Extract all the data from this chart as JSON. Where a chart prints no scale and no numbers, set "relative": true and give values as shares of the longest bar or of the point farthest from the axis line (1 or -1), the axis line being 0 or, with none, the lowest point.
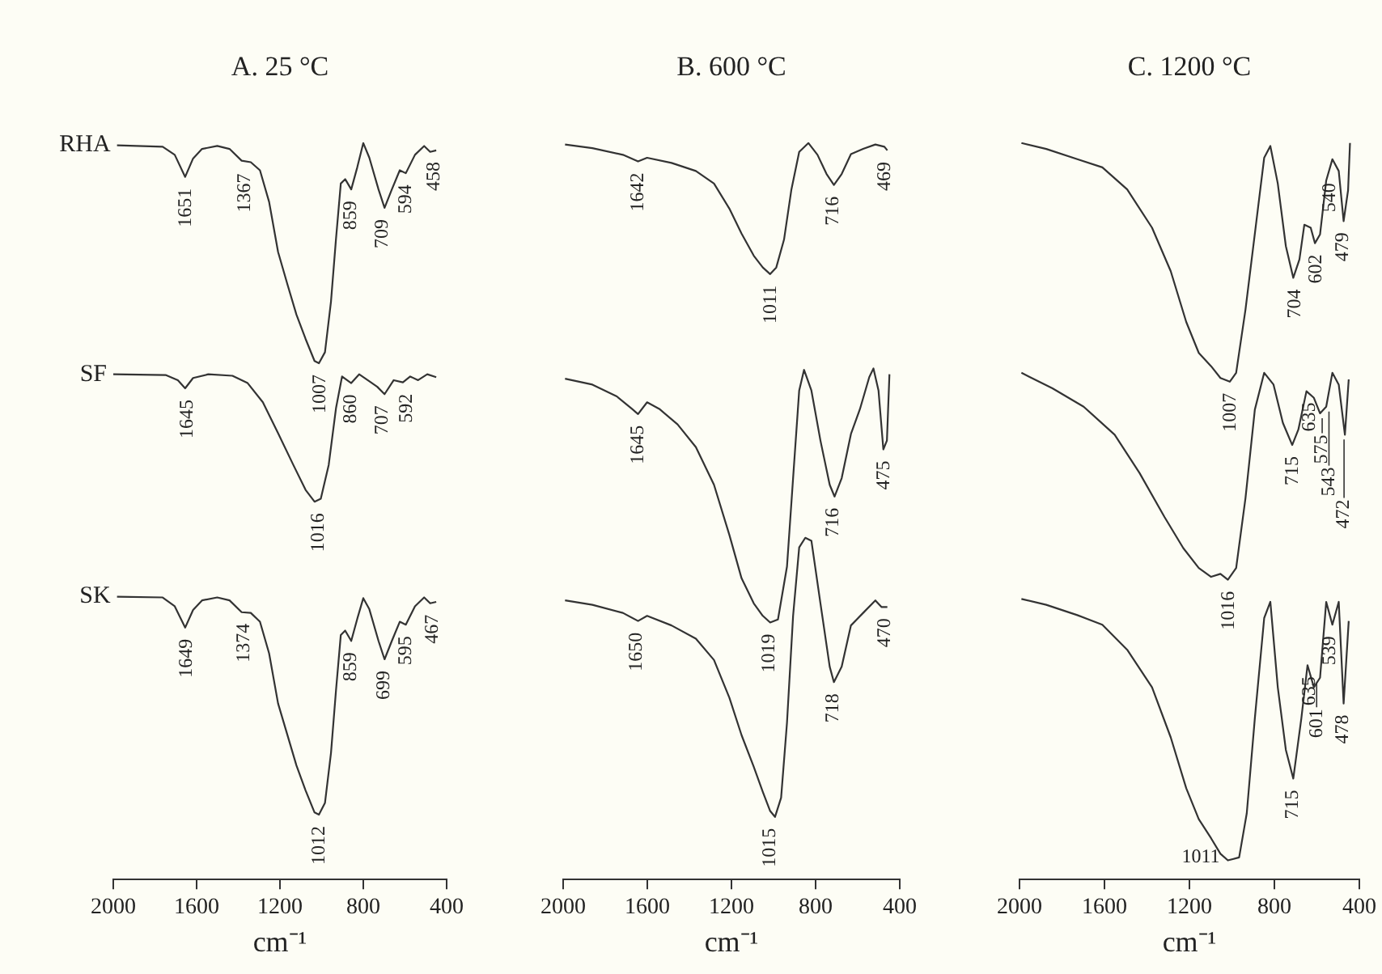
{
  "chart_data": [
    {
      "type": "line",
      "title": "A. 25 °C",
      "xlabel": "cm⁻¹",
      "relative": true,
      "marker": "none",
      "legend": false,
      "xlim": [
        2000,
        400
      ],
      "xticks": [
        2000,
        1600,
        1200,
        800,
        400
      ],
      "series": [
        {
          "name": "RHA",
          "color": "#333333",
          "x": [
            1982,
            1763,
            1705,
            1655,
            1617,
            1574,
            1501,
            1442,
            1384,
            1340,
            1296,
            1252,
            1209,
            1165,
            1121,
            1077,
            1034,
            1013,
            984,
            955,
            931,
            908,
            887,
            858,
            829,
            800,
            771,
            727,
            698,
            663,
            625,
            596,
            552,
            508,
            479,
            450
          ],
          "values": [
            0.997,
            0.995,
            0.984,
            0.954,
            0.979,
            0.992,
            0.996,
            0.992,
            0.976,
            0.974,
            0.963,
            0.92,
            0.852,
            0.809,
            0.767,
            0.734,
            0.704,
            0.701,
            0.716,
            0.785,
            0.87,
            0.945,
            0.951,
            0.937,
            0.967,
            1.0,
            0.98,
            0.937,
            0.912,
            0.937,
            0.963,
            0.959,
            0.984,
            0.996,
            0.988,
            0.99
          ]
        },
        {
          "name": "SF",
          "color": "#333333",
          "x": [
            2000,
            1749,
            1690,
            1655,
            1617,
            1544,
            1428,
            1355,
            1282,
            1209,
            1136,
            1077,
            1034,
            1004,
            966,
            931,
            902,
            858,
            820,
            779,
            733,
            698,
            654,
            610,
            575,
            537,
            493,
            450
          ],
          "values": [
            0.686,
            0.685,
            0.678,
            0.667,
            0.681,
            0.686,
            0.684,
            0.674,
            0.648,
            0.606,
            0.563,
            0.529,
            0.513,
            0.517,
            0.563,
            0.64,
            0.683,
            0.674,
            0.686,
            0.678,
            0.669,
            0.659,
            0.678,
            0.675,
            0.683,
            0.678,
            0.686,
            0.682
          ]
        },
        {
          "name": "SK",
          "color": "#333333",
          "x": [
            1982,
            1763,
            1705,
            1655,
            1617,
            1574,
            1501,
            1442,
            1384,
            1340,
            1296,
            1252,
            1209,
            1165,
            1121,
            1077,
            1034,
            1013,
            984,
            955,
            931,
            908,
            887,
            858,
            829,
            800,
            771,
            727,
            698,
            663,
            625,
            596,
            552,
            508,
            479,
            450
          ],
          "values": [
            0.384,
            0.383,
            0.371,
            0.342,
            0.366,
            0.379,
            0.383,
            0.379,
            0.363,
            0.362,
            0.35,
            0.307,
            0.239,
            0.197,
            0.155,
            0.121,
            0.091,
            0.088,
            0.104,
            0.172,
            0.257,
            0.332,
            0.338,
            0.324,
            0.354,
            0.382,
            0.367,
            0.324,
            0.299,
            0.324,
            0.35,
            0.346,
            0.371,
            0.383,
            0.375,
            0.377
          ]
        }
      ],
      "annotations": [
        {
          "text": "1651",
          "x": 1651,
          "y": 0.954
        },
        {
          "text": "1367",
          "x": 1367,
          "y": 0.974
        },
        {
          "text": "1007",
          "x": 1007,
          "y": 0.701
        },
        {
          "text": "859",
          "x": 859,
          "y": 0.937
        },
        {
          "text": "709",
          "x": 709,
          "y": 0.912
        },
        {
          "text": "594",
          "x": 594,
          "y": 0.959
        },
        {
          "text": "458",
          "x": 458,
          "y": 0.99
        },
        {
          "text": "1645",
          "x": 1645,
          "y": 0.667
        },
        {
          "text": "1016",
          "x": 1016,
          "y": 0.513
        },
        {
          "text": "860",
          "x": 860,
          "y": 0.674
        },
        {
          "text": "707",
          "x": 707,
          "y": 0.659
        },
        {
          "text": "592",
          "x": 592,
          "y": 0.675
        },
        {
          "text": "1649",
          "x": 1649,
          "y": 0.342
        },
        {
          "text": "1374",
          "x": 1374,
          "y": 0.363
        },
        {
          "text": "1012",
          "x": 1012,
          "y": 0.088
        },
        {
          "text": "859",
          "x": 859,
          "y": 0.324
        },
        {
          "text": "699",
          "x": 699,
          "y": 0.299
        },
        {
          "text": "595",
          "x": 595,
          "y": 0.346
        },
        {
          "text": "467",
          "x": 467,
          "y": 0.375
        }
      ]
    },
    {
      "type": "line",
      "title": "B. 600 °C",
      "xlabel": "cm⁻¹",
      "relative": true,
      "marker": "none",
      "legend": false,
      "xlim": [
        2000,
        400
      ],
      "xticks": [
        2000,
        1600,
        1200,
        800,
        400
      ],
      "series": [
        {
          "color": "#333333",
          "x": [
            1991,
            1861,
            1716,
            1644,
            1601,
            1485,
            1369,
            1283,
            1210,
            1152,
            1094,
            1051,
            1016,
            987,
            950,
            915,
            878,
            834,
            791,
            748,
            713,
            676,
            632,
            574,
            516,
            473,
            459
          ],
          "values": [
            0.998,
            0.993,
            0.984,
            0.975,
            0.98,
            0.973,
            0.962,
            0.945,
            0.911,
            0.877,
            0.847,
            0.831,
            0.822,
            0.831,
            0.869,
            0.937,
            0.988,
            1.0,
            0.984,
            0.958,
            0.943,
            0.958,
            0.985,
            0.992,
            0.998,
            0.995,
            0.99
          ]
        },
        {
          "color": "#333333",
          "x": [
            1991,
            1861,
            1745,
            1673,
            1644,
            1601,
            1543,
            1456,
            1369,
            1283,
            1210,
            1152,
            1094,
            1051,
            1016,
            979,
            936,
            907,
            878,
            855,
            820,
            777,
            733,
            710,
            676,
            632,
            589,
            545,
            525,
            501,
            478,
            461,
            449
          ],
          "values": [
            0.68,
            0.672,
            0.656,
            0.639,
            0.632,
            0.648,
            0.639,
            0.618,
            0.587,
            0.536,
            0.468,
            0.409,
            0.375,
            0.358,
            0.349,
            0.353,
            0.425,
            0.545,
            0.664,
            0.692,
            0.664,
            0.596,
            0.536,
            0.52,
            0.545,
            0.605,
            0.639,
            0.682,
            0.694,
            0.664,
            0.584,
            0.596,
            0.686
          ]
        },
        {
          "color": "#333333",
          "x": [
            1991,
            1861,
            1716,
            1644,
            1601,
            1485,
            1369,
            1283,
            1210,
            1152,
            1094,
            1051,
            1016,
            993,
            964,
            936,
            907,
            878,
            849,
            820,
            777,
            733,
            713,
            676,
            632,
            574,
            516,
            487,
            459
          ],
          "values": [
            0.379,
            0.373,
            0.362,
            0.351,
            0.358,
            0.345,
            0.327,
            0.298,
            0.247,
            0.196,
            0.153,
            0.119,
            0.093,
            0.085,
            0.111,
            0.213,
            0.358,
            0.451,
            0.464,
            0.46,
            0.375,
            0.289,
            0.268,
            0.289,
            0.345,
            0.362,
            0.379,
            0.37,
            0.37
          ]
        }
      ],
      "annotations": [
        {
          "text": "1642",
          "x": 1642,
          "y": 0.975
        },
        {
          "text": "1011",
          "x": 1011,
          "y": 0.822
        },
        {
          "text": "716",
          "x": 716,
          "y": 0.943
        },
        {
          "text": "469",
          "x": 469,
          "y": 0.99
        },
        {
          "text": "1645",
          "x": 1645,
          "y": 0.632
        },
        {
          "text": "1019",
          "x": 1019,
          "y": 0.349
        },
        {
          "text": "716",
          "x": 716,
          "y": 0.52
        },
        {
          "text": "475",
          "x": 475,
          "y": 0.584
        },
        {
          "text": "1650",
          "x": 1650,
          "y": 0.351
        },
        {
          "text": "1015",
          "x": 1015,
          "y": 0.085
        },
        {
          "text": "718",
          "x": 718,
          "y": 0.268
        },
        {
          "text": "470",
          "x": 470,
          "y": 0.37
        }
      ]
    },
    {
      "type": "line",
      "title": "C. 1200 °C",
      "xlabel": "cm⁻¹",
      "relative": true,
      "marker": "none",
      "legend": false,
      "xlim": [
        2000,
        400
      ],
      "xticks": [
        2000,
        1600,
        1200,
        800,
        400
      ],
      "series": [
        {
          "color": "#333333",
          "x": [
            1991,
            1874,
            1728,
            1610,
            1493,
            1376,
            1288,
            1215,
            1156,
            1098,
            1054,
            1010,
            980,
            936,
            892,
            848,
            819,
            784,
            746,
            711,
            682,
            659,
            629,
            609,
            585,
            556,
            527,
            497,
            474,
            453,
            444
          ],
          "values": [
            1.0,
            0.992,
            0.978,
            0.967,
            0.937,
            0.885,
            0.826,
            0.757,
            0.715,
            0.697,
            0.681,
            0.676,
            0.688,
            0.774,
            0.877,
            0.98,
            0.996,
            0.945,
            0.86,
            0.817,
            0.842,
            0.889,
            0.885,
            0.864,
            0.876,
            0.949,
            0.978,
            0.962,
            0.894,
            0.936,
            1.0
          ]
        },
        {
          "color": "#333333",
          "x": [
            1991,
            1845,
            1698,
            1552,
            1435,
            1317,
            1229,
            1156,
            1098,
            1054,
            1019,
            980,
            936,
            892,
            848,
            804,
            760,
            716,
            687,
            649,
            614,
            585,
            556,
            527,
            497,
            468,
            450
          ],
          "values": [
            0.688,
            0.667,
            0.642,
            0.604,
            0.552,
            0.492,
            0.45,
            0.423,
            0.411,
            0.415,
            0.407,
            0.423,
            0.518,
            0.638,
            0.688,
            0.672,
            0.62,
            0.59,
            0.611,
            0.663,
            0.654,
            0.633,
            0.642,
            0.688,
            0.672,
            0.604,
            0.679
          ]
        },
        {
          "color": "#333333",
          "x": [
            1991,
            1874,
            1728,
            1610,
            1493,
            1376,
            1288,
            1215,
            1156,
            1098,
            1054,
            1019,
            966,
            930,
            892,
            848,
            819,
            784,
            746,
            711,
            673,
            644,
            614,
            585,
            556,
            527,
            497,
            474,
            450
          ],
          "values": [
            0.381,
            0.373,
            0.359,
            0.346,
            0.312,
            0.261,
            0.193,
            0.124,
            0.082,
            0.056,
            0.035,
            0.026,
            0.03,
            0.09,
            0.219,
            0.355,
            0.377,
            0.261,
            0.176,
            0.137,
            0.219,
            0.291,
            0.261,
            0.274,
            0.377,
            0.346,
            0.377,
            0.239,
            0.351
          ]
        }
      ],
      "annotations": [
        {
          "text": "1007",
          "x": 1007,
          "y": 0.676
        },
        {
          "text": "704",
          "x": 704,
          "y": 0.817
        },
        {
          "text": "602",
          "x": 602,
          "y": 0.864
        },
        {
          "text": "540",
          "x": 540,
          "y": 0.961
        },
        {
          "text": "479",
          "x": 479,
          "y": 0.894
        },
        {
          "text": "1016",
          "x": 1016,
          "y": 0.407
        },
        {
          "text": "715",
          "x": 715,
          "y": 0.59
        },
        {
          "text": "635",
          "x": 635,
          "y": 0.663
        },
        {
          "text": "575",
          "x": 575,
          "y": 0.633
        },
        {
          "text": "543",
          "x": 543,
          "y": 0.642
        },
        {
          "text": "472",
          "x": 472,
          "y": 0.604
        },
        {
          "text": "1011",
          "x": 1011,
          "y": 0.026
        },
        {
          "text": "715",
          "x": 715,
          "y": 0.137
        },
        {
          "text": "635",
          "x": 635,
          "y": 0.291
        },
        {
          "text": "601",
          "x": 601,
          "y": 0.274
        },
        {
          "text": "539",
          "x": 539,
          "y": 0.346
        },
        {
          "text": "478",
          "x": 478,
          "y": 0.239
        }
      ]
    }
  ]
}
